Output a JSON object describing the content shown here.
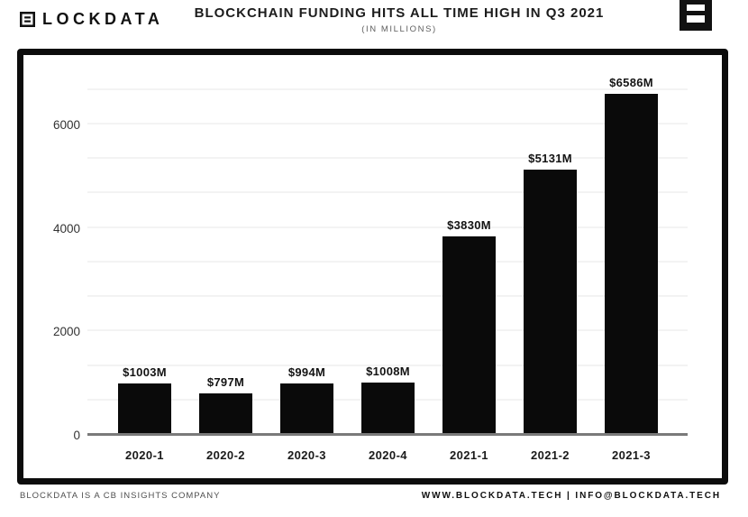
{
  "header": {
    "brand_text": "LOCKDATA",
    "brand_mark": "blockdata-square-glyph",
    "title": "BLOCKCHAIN FUNDING HITS ALL TIME HIGH IN Q3 2021",
    "subtitle": "(IN MILLIONS)",
    "corner_mark": "blockdata-square-logo"
  },
  "chart_data": {
    "type": "bar",
    "title": "BLOCKCHAIN FUNDING HITS ALL TIME HIGH IN Q3 2021",
    "subtitle": "(IN MILLIONS)",
    "categories": [
      "2020-1",
      "2020-2",
      "2020-3",
      "2020-4",
      "2021-1",
      "2021-2",
      "2021-3"
    ],
    "values": [
      1003,
      797,
      994,
      1008,
      3830,
      5131,
      6586
    ],
    "value_labels": [
      "$1003M",
      "$797M",
      "$994M",
      "$1008M",
      "$3830M",
      "$5131M",
      "$6586M"
    ],
    "xlabel": "",
    "ylabel": "",
    "yticks": [
      0,
      2000,
      4000,
      6000
    ],
    "ylim": [
      0,
      6836
    ],
    "grid": true,
    "gridline_step": 666.6667,
    "legend": "none",
    "bar_color": "#0a0a0a",
    "axis_color": "#7a7a7a"
  },
  "footer": {
    "left": "BLOCKDATA IS A CB INSIGHTS COMPANY",
    "right": "WWW.BLOCKDATA.TECH | INFO@BLOCKDATA.TECH"
  }
}
